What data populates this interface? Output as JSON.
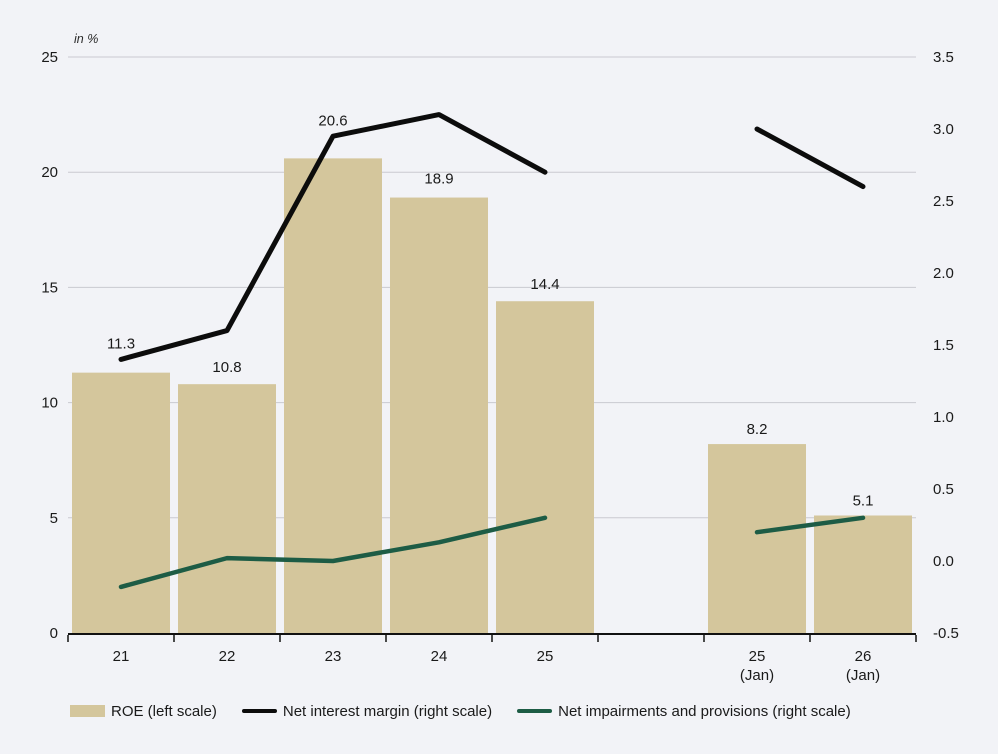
{
  "chart_data": {
    "type": "bar+line",
    "title": "",
    "unit_label": "in %",
    "categories": [
      "21",
      "22",
      "23",
      "24",
      "25",
      "",
      "25\n(Jan)",
      "26\n(Jan)"
    ],
    "left_axis": {
      "range": [
        0,
        25
      ],
      "ticks": [
        0,
        5,
        10,
        15,
        20,
        25
      ],
      "decimals": 0
    },
    "right_axis": {
      "range": [
        -0.5,
        3.5
      ],
      "ticks": [
        -0.5,
        0.0,
        0.5,
        1.0,
        1.5,
        2.0,
        2.5,
        3.0,
        3.5
      ],
      "decimals": 1
    },
    "series": [
      {
        "name": "ROE (left scale)",
        "kind": "bar",
        "axis": "left",
        "color": "#d4c69c",
        "values": [
          11.3,
          10.8,
          20.6,
          18.9,
          14.4,
          null,
          8.2,
          5.1
        ],
        "labels": [
          "11.3",
          "10.8",
          "20.6",
          "18.9",
          "14.4",
          null,
          "8.2",
          "5.1"
        ]
      },
      {
        "name": "Net interest margin (right scale)",
        "kind": "line",
        "axis": "right",
        "color": "#0c0c0c",
        "values": [
          1.4,
          1.6,
          2.95,
          3.1,
          2.7,
          null,
          3.0,
          2.6
        ]
      },
      {
        "name": "Net impairments and provisions (right scale)",
        "kind": "line",
        "axis": "right",
        "color": "#1d5c45",
        "values": [
          -0.18,
          0.02,
          0.0,
          0.13,
          0.3,
          null,
          0.2,
          0.3
        ]
      }
    ],
    "layout": {
      "grid": true,
      "legend_position": "bottom",
      "background": "#f2f3f7",
      "gridline_color": "#c9cad0",
      "axis_color": "#111111",
      "text_color": "#1a1a1a",
      "bar_label_dy": [
        -29,
        -17,
        -38,
        -19,
        -17,
        0,
        -15,
        -15
      ]
    }
  }
}
